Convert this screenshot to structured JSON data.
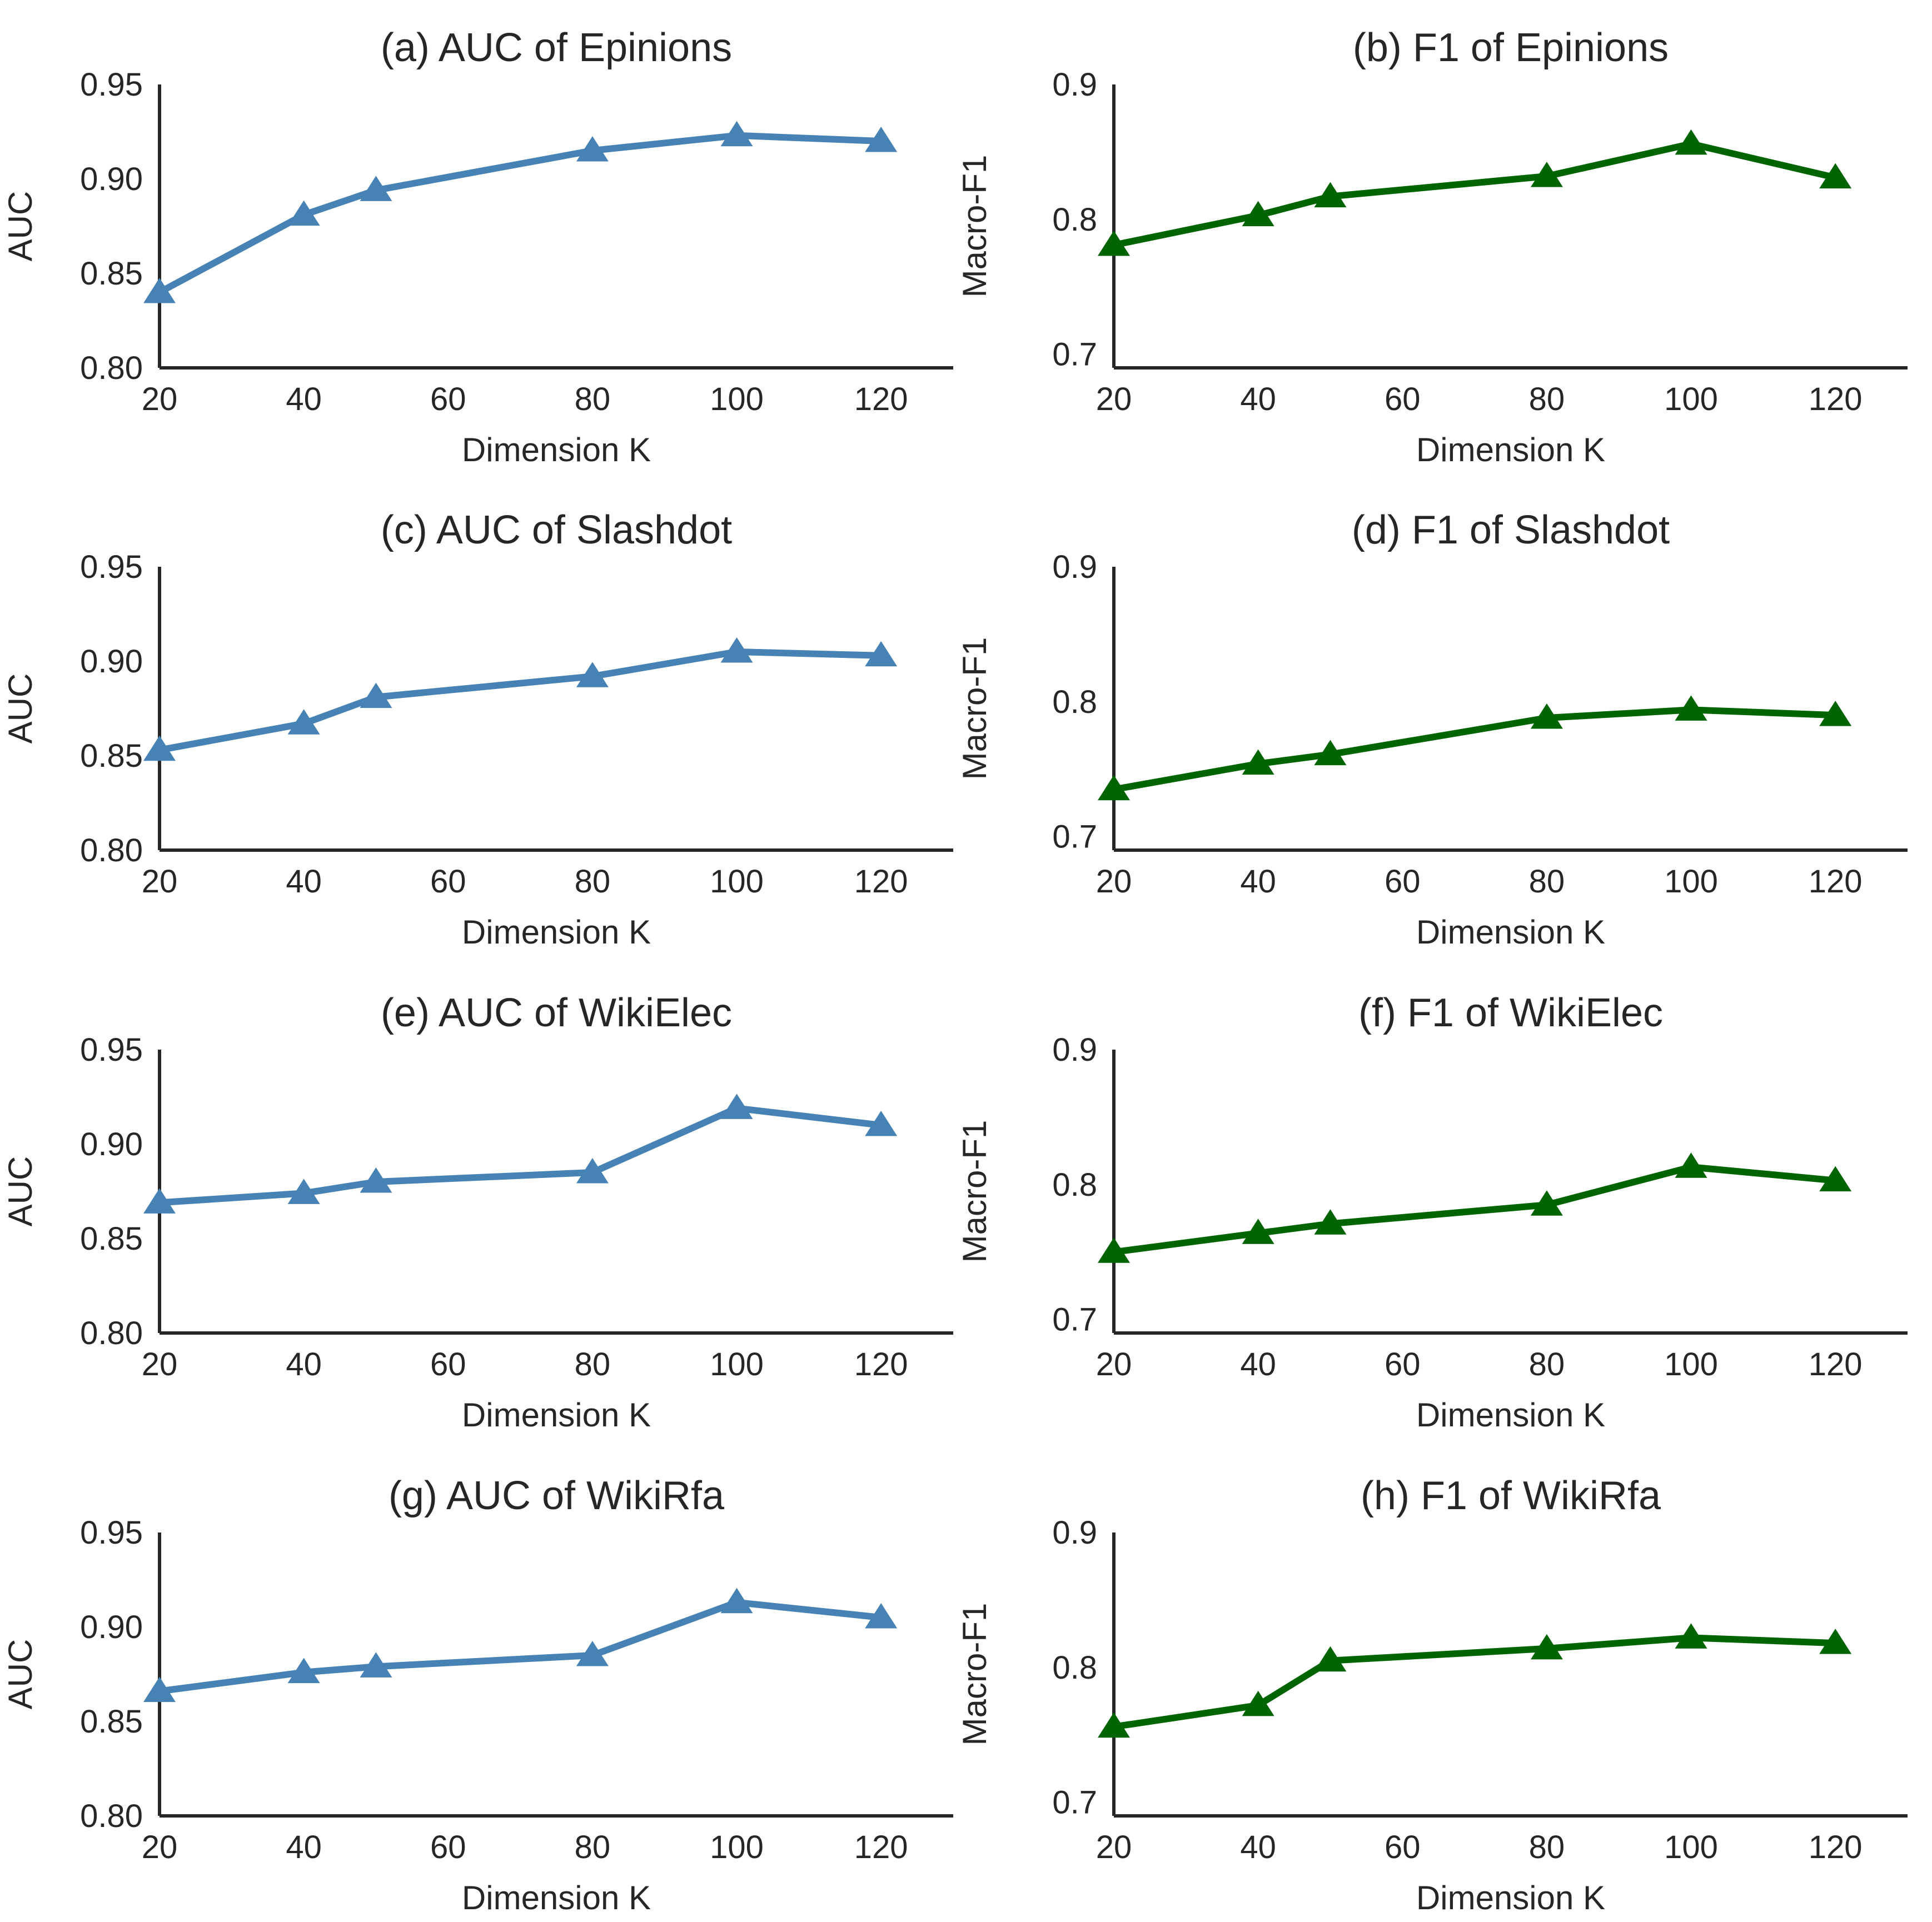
{
  "chart_data": [
    {
      "id": "a",
      "type": "line",
      "title": "(a) AUC of Epinions",
      "xlabel": "Dimension K",
      "ylabel": "AUC",
      "xlim": [
        20,
        130
      ],
      "ylim": [
        0.8,
        0.95
      ],
      "xticks": [
        "20",
        "40",
        "60",
        "80",
        "100",
        "120"
      ],
      "yticks": [
        "0.80",
        "0.85",
        "0.90",
        "0.95"
      ],
      "color": "#4682b4",
      "series": [
        {
          "name": "AUC",
          "x": [
            20,
            40,
            50,
            80,
            100,
            120
          ],
          "values": [
            0.84,
            0.881,
            0.894,
            0.915,
            0.923,
            0.92
          ]
        }
      ]
    },
    {
      "id": "b",
      "type": "line",
      "title": "(b) F1 of Epinions",
      "xlabel": "Dimension K",
      "ylabel": "Macro-F1",
      "xlim": [
        20,
        130
      ],
      "ylim": [
        0.69,
        0.9
      ],
      "xticks": [
        "20",
        "40",
        "60",
        "80",
        "100",
        "120"
      ],
      "yticks": [
        "0.7",
        "0.8",
        "0.9"
      ],
      "color": "#006400",
      "series": [
        {
          "name": "Macro-F1",
          "x": [
            20,
            40,
            50,
            80,
            100,
            120
          ],
          "values": [
            0.781,
            0.803,
            0.817,
            0.832,
            0.856,
            0.831
          ]
        }
      ]
    },
    {
      "id": "c",
      "type": "line",
      "title": "(c) AUC of Slashdot",
      "xlabel": "Dimension K",
      "ylabel": "AUC",
      "xlim": [
        20,
        130
      ],
      "ylim": [
        0.8,
        0.95
      ],
      "xticks": [
        "20",
        "40",
        "60",
        "80",
        "100",
        "120"
      ],
      "yticks": [
        "0.80",
        "0.85",
        "0.90",
        "0.95"
      ],
      "color": "#4682b4",
      "series": [
        {
          "name": "AUC",
          "x": [
            20,
            40,
            50,
            80,
            100,
            120
          ],
          "values": [
            0.853,
            0.867,
            0.881,
            0.892,
            0.905,
            0.903
          ]
        }
      ]
    },
    {
      "id": "d",
      "type": "line",
      "title": "(d) F1 of Slashdot",
      "xlabel": "Dimension K",
      "ylabel": "Macro-F1",
      "xlim": [
        20,
        130
      ],
      "ylim": [
        0.69,
        0.9
      ],
      "xticks": [
        "20",
        "40",
        "60",
        "80",
        "100",
        "120"
      ],
      "yticks": [
        "0.7",
        "0.8",
        "0.9"
      ],
      "color": "#006400",
      "series": [
        {
          "name": "Macro-F1",
          "x": [
            20,
            40,
            50,
            80,
            100,
            120
          ],
          "values": [
            0.735,
            0.754,
            0.761,
            0.788,
            0.794,
            0.79
          ]
        }
      ]
    },
    {
      "id": "e",
      "type": "line",
      "title": "(e) AUC of WikiElec",
      "xlabel": "Dimension K",
      "ylabel": "AUC",
      "xlim": [
        20,
        130
      ],
      "ylim": [
        0.8,
        0.95
      ],
      "xticks": [
        "20",
        "40",
        "60",
        "80",
        "100",
        "120"
      ],
      "yticks": [
        "0.80",
        "0.85",
        "0.90",
        "0.95"
      ],
      "color": "#4682b4",
      "series": [
        {
          "name": "AUC",
          "x": [
            20,
            40,
            50,
            80,
            100,
            120
          ],
          "values": [
            0.869,
            0.874,
            0.88,
            0.885,
            0.919,
            0.91
          ]
        }
      ]
    },
    {
      "id": "f",
      "type": "line",
      "title": "(f) F1 of WikiElec",
      "xlabel": "Dimension K",
      "ylabel": "Macro-F1",
      "xlim": [
        20,
        130
      ],
      "ylim": [
        0.69,
        0.9
      ],
      "xticks": [
        "20",
        "40",
        "60",
        "80",
        "100",
        "120"
      ],
      "yticks": [
        "0.7",
        "0.8",
        "0.9"
      ],
      "color": "#006400",
      "series": [
        {
          "name": "Macro-F1",
          "x": [
            20,
            40,
            50,
            80,
            100,
            120
          ],
          "values": [
            0.75,
            0.764,
            0.771,
            0.785,
            0.813,
            0.803
          ]
        }
      ]
    },
    {
      "id": "g",
      "type": "line",
      "title": "(g) AUC of WikiRfa",
      "xlabel": "Dimension K",
      "ylabel": "AUC",
      "xlim": [
        20,
        130
      ],
      "ylim": [
        0.8,
        0.95
      ],
      "xticks": [
        "20",
        "40",
        "60",
        "80",
        "100",
        "120"
      ],
      "yticks": [
        "0.80",
        "0.85",
        "0.90",
        "0.95"
      ],
      "color": "#4682b4",
      "series": [
        {
          "name": "AUC",
          "x": [
            20,
            40,
            50,
            80,
            100,
            120
          ],
          "values": [
            0.866,
            0.876,
            0.879,
            0.885,
            0.913,
            0.905
          ]
        }
      ]
    },
    {
      "id": "h",
      "type": "line",
      "title": "(h) F1 of WikiRfa",
      "xlabel": "Dimension K",
      "ylabel": "Macro-F1",
      "xlim": [
        20,
        130
      ],
      "ylim": [
        0.69,
        0.9
      ],
      "xticks": [
        "20",
        "40",
        "60",
        "80",
        "100",
        "120"
      ],
      "yticks": [
        "0.7",
        "0.8",
        "0.9"
      ],
      "color": "#006400",
      "series": [
        {
          "name": "Macro-F1",
          "x": [
            20,
            40,
            50,
            80,
            100,
            120
          ],
          "values": [
            0.756,
            0.772,
            0.805,
            0.814,
            0.822,
            0.818
          ]
        }
      ]
    }
  ]
}
